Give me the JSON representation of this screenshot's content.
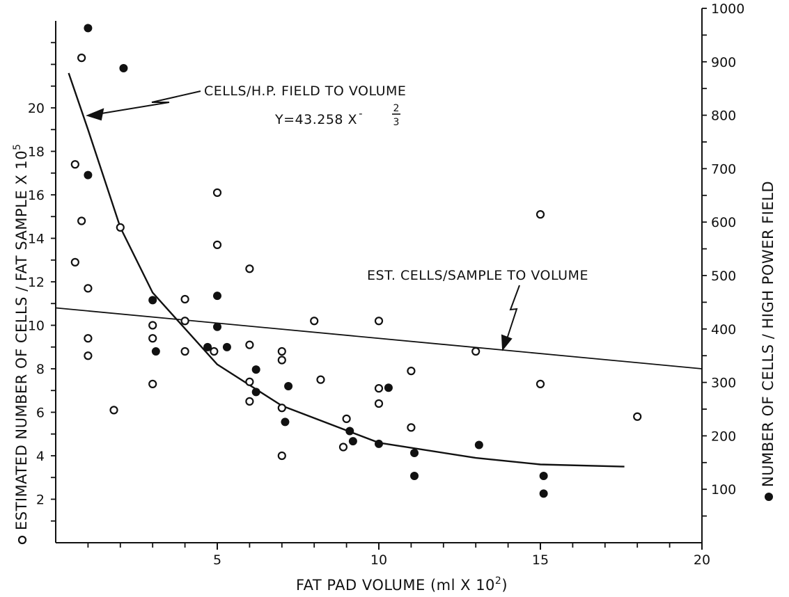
{
  "chart_data": {
    "type": "scatter",
    "title": "",
    "xlabel": "FAT PAD VOLUME (ml X 10",
    "xlabel_sup": "2",
    "xlabel_end": ")",
    "ylabel_left": "ESTIMATED NUMBER OF CELLS / FAT SAMPLE X 10",
    "ylabel_left_sup": "5",
    "ylabel_right": "NUMBER OF CELLS / HIGH POWER FIELD",
    "xlim": [
      0,
      20
    ],
    "ylim_left": [
      0,
      24
    ],
    "ylim_right": [
      0,
      1000
    ],
    "x_ticks": [
      5,
      10,
      15,
      20
    ],
    "y_left_ticks": [
      2,
      4,
      6,
      8,
      10,
      12,
      14,
      16,
      18,
      20
    ],
    "y_right_ticks": [
      100,
      200,
      300,
      400,
      500,
      600,
      700,
      800,
      900,
      1000
    ],
    "grid": false,
    "series": [
      {
        "marker": "open-circle",
        "axis": "left",
        "points": [
          [
            0.8,
            22.3
          ],
          [
            0.6,
            17.4
          ],
          [
            0.8,
            14.8
          ],
          [
            0.6,
            12.9
          ],
          [
            1.0,
            11.7
          ],
          [
            1.0,
            9.4
          ],
          [
            1.0,
            8.6
          ],
          [
            2.0,
            14.5
          ],
          [
            1.8,
            6.1
          ],
          [
            3.0,
            10.0
          ],
          [
            3.0,
            9.4
          ],
          [
            3.0,
            7.3
          ],
          [
            4.0,
            11.2
          ],
          [
            4.0,
            10.2
          ],
          [
            4.0,
            8.8
          ],
          [
            5.0,
            16.1
          ],
          [
            5.0,
            13.7
          ],
          [
            4.9,
            8.8
          ],
          [
            6.0,
            12.6
          ],
          [
            6.0,
            9.1
          ],
          [
            6.0,
            7.4
          ],
          [
            6.0,
            6.5
          ],
          [
            7.0,
            8.8
          ],
          [
            7.0,
            8.4
          ],
          [
            7.0,
            6.2
          ],
          [
            7.0,
            4.0
          ],
          [
            8.0,
            10.2
          ],
          [
            8.2,
            7.5
          ],
          [
            9.0,
            5.7
          ],
          [
            8.9,
            4.4
          ],
          [
            10.0,
            10.2
          ],
          [
            10.0,
            7.1
          ],
          [
            10.0,
            6.4
          ],
          [
            11.0,
            7.9
          ],
          [
            11.0,
            5.3
          ],
          [
            13.0,
            8.8
          ],
          [
            15.0,
            15.1
          ],
          [
            15.0,
            7.3
          ],
          [
            18.0,
            5.8
          ]
        ]
      },
      {
        "marker": "filled-circle",
        "axis": "right",
        "points": [
          [
            1.0,
            963
          ],
          [
            2.1,
            888
          ],
          [
            1.0,
            688
          ],
          [
            3.0,
            454
          ],
          [
            3.1,
            358
          ],
          [
            4.7,
            366
          ],
          [
            5.0,
            462
          ],
          [
            5.0,
            404
          ],
          [
            5.3,
            366
          ],
          [
            6.2,
            324
          ],
          [
            6.2,
            282
          ],
          [
            7.2,
            293
          ],
          [
            7.1,
            226
          ],
          [
            9.1,
            209
          ],
          [
            9.2,
            190
          ],
          [
            10.3,
            290
          ],
          [
            10.0,
            185
          ],
          [
            11.1,
            168
          ],
          [
            11.1,
            125
          ],
          [
            13.1,
            183
          ],
          [
            15.1,
            125
          ],
          [
            15.1,
            92
          ]
        ]
      }
    ],
    "curves": [
      {
        "type": "power",
        "label": "CELLS/H.P. FIELD TO VOLUME",
        "equation_lhs": "Y=43.258 X",
        "exponent_num": "2",
        "exponent_den": "3",
        "exponent_sign": "-",
        "x_range": [
          0.4,
          17.6
        ],
        "y_left_at": [
          [
            0.4,
            21.6
          ],
          [
            1.0,
            19.0
          ],
          [
            2.0,
            14.5
          ],
          [
            3.0,
            11.5
          ],
          [
            5.0,
            8.2
          ],
          [
            7.0,
            6.3
          ],
          [
            10.0,
            4.6
          ],
          [
            13.0,
            3.9
          ],
          [
            15.0,
            3.6
          ],
          [
            17.6,
            3.5
          ]
        ]
      },
      {
        "type": "linear",
        "label": "EST. CELLS/SAMPLE TO VOLUME",
        "y_left_at": [
          [
            0,
            10.8
          ],
          [
            20,
            8.0
          ]
        ]
      }
    ]
  }
}
